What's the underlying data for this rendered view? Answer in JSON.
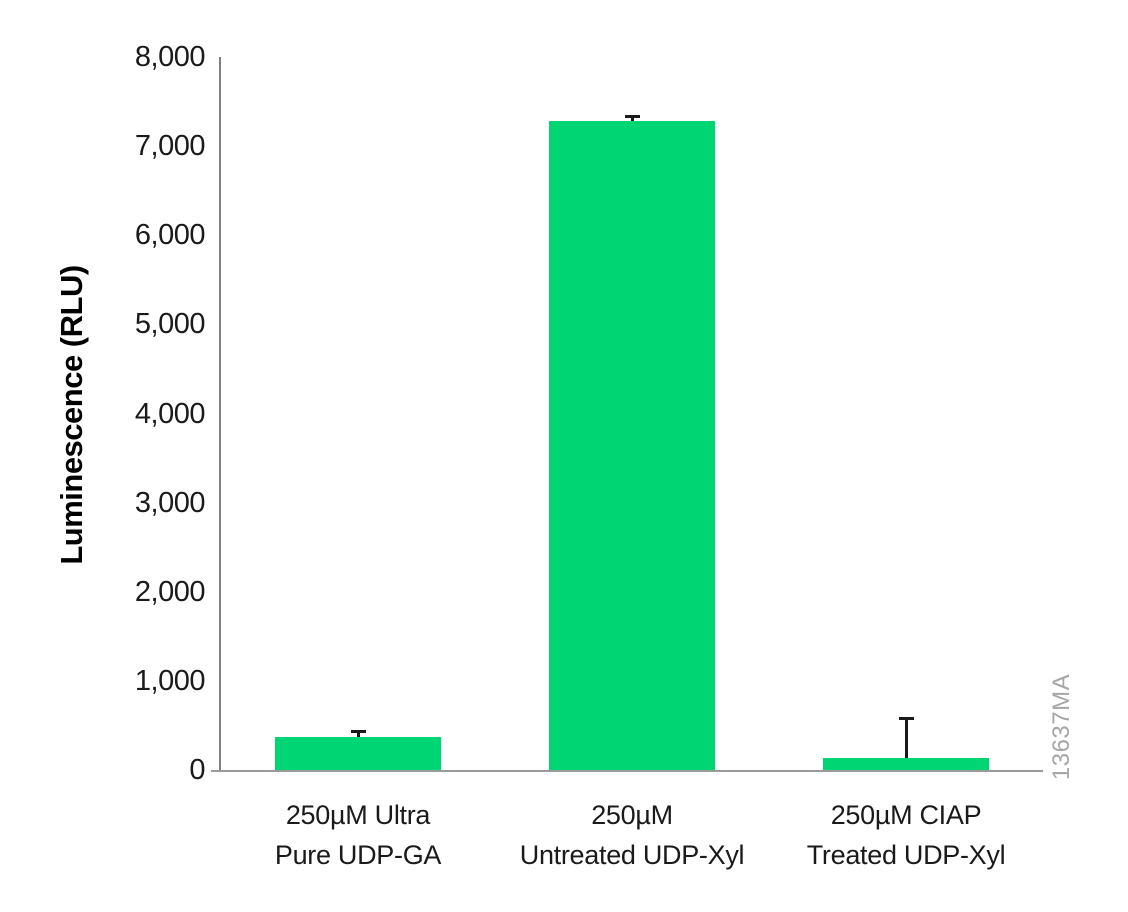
{
  "chart": {
    "ylabel": "Luminescence (RLU)",
    "watermark": "13637MA"
  },
  "chart_data": {
    "type": "bar",
    "title": "",
    "categories": [
      [
        "250µM Ultra",
        "Pure UDP-GA"
      ],
      [
        "250µM",
        "Untreated UDP-Xyl"
      ],
      [
        "250µM CIAP",
        "Treated UDP-Xyl"
      ]
    ],
    "values": [
      370,
      7280,
      135
    ],
    "error_up": [
      80,
      65,
      460
    ],
    "xlabel": "",
    "ylabel": "Luminescence (RLU)",
    "ylim": [
      0,
      8000
    ],
    "yticks": [
      0,
      1000,
      2000,
      3000,
      4000,
      5000,
      6000,
      7000,
      8000
    ],
    "ytick_labels": [
      "0",
      "1,000",
      "2,000",
      "3,000",
      "4,000",
      "5,000",
      "6,000",
      "7,000",
      "8,000"
    ],
    "grid": false,
    "legend": "none",
    "bar_color": "#00d573",
    "axis_color": "#7f7f7f",
    "error_bar_color": "#1a1a1a",
    "watermark": "13637MA",
    "watermark_color": "#a6a6a6"
  }
}
